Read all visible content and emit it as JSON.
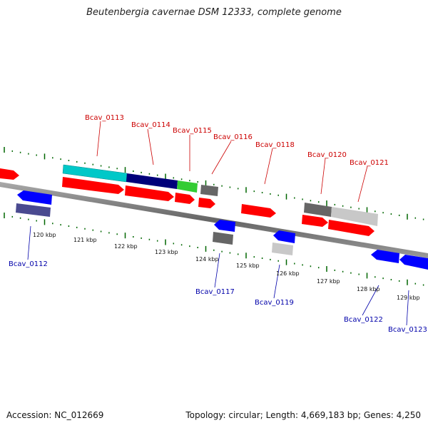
{
  "title": "Beutenbergia cavernae DSM 12333, complete genome",
  "accession": "Accession: NC_012669",
  "topology": "Topology: circular; Length: 4,669,183 bp; Genes: 4,250",
  "colors": {
    "red": "#ff0000",
    "blue": "#0000ff",
    "navy": "#00007a",
    "cyan": "#00c8c8",
    "green": "#33cc33",
    "dark_gray": "#666666",
    "light_gray": "#c8c8c8",
    "slate": "#4a4a90",
    "tick_green": "#006600",
    "axis": "#888888"
  },
  "scale": {
    "labels": [
      "120 kbp",
      "121 kbp",
      "122 kbp",
      "123 kbp",
      "124 kbp",
      "125 kbp",
      "126 kbp",
      "127 kbp",
      "128 kbp",
      "129 kbp"
    ]
  },
  "genes_forward": [
    {
      "name": "Bcav_0113",
      "color": "red"
    },
    {
      "name": "Bcav_0114",
      "color": "red"
    },
    {
      "name": "Bcav_0115",
      "color": "red"
    },
    {
      "name": "Bcav_0116",
      "color": "red"
    },
    {
      "name": "Bcav_0118",
      "color": "red"
    },
    {
      "name": "Bcav_0120",
      "color": "red"
    },
    {
      "name": "Bcav_0121",
      "color": "red"
    }
  ],
  "genes_reverse": [
    {
      "name": "Bcav_0112",
      "color": "blue"
    },
    {
      "name": "Bcav_0117",
      "color": "blue"
    },
    {
      "name": "Bcav_0119",
      "color": "blue"
    },
    {
      "name": "Bcav_0122",
      "color": "blue"
    },
    {
      "name": "Bcav_0123",
      "color": "blue"
    }
  ]
}
